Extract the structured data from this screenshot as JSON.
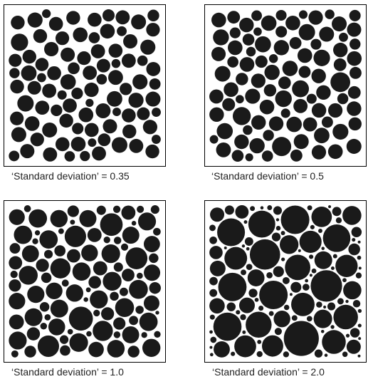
{
  "colors": {
    "disc": "#1a1a1a",
    "background": "#ffffff",
    "border": "#000000"
  },
  "panels": [
    {
      "caption": "‘Standard deviation’ = 0.35",
      "std": 0.35
    },
    {
      "caption": "‘Standard deviation’ = 0.5",
      "std": 0.5
    },
    {
      "caption": "‘Standard deviation’ = 1.0",
      "std": 1.0
    },
    {
      "caption": "‘Standard deviation’ = 2.0",
      "std": 2.0
    }
  ]
}
